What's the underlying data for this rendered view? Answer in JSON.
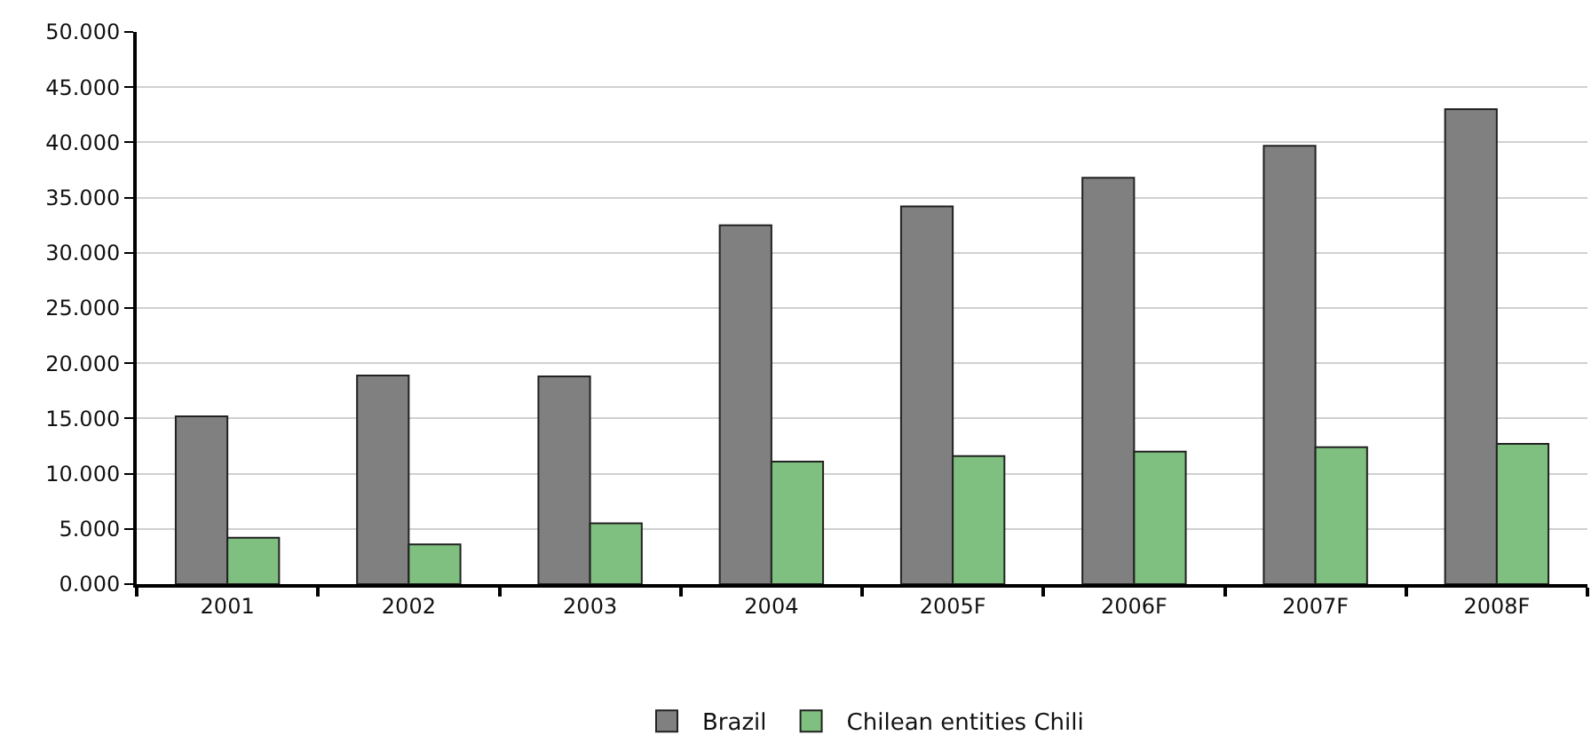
{
  "chart_data": {
    "type": "bar",
    "categories": [
      "2001",
      "2002",
      "2003",
      "2004",
      "2005F",
      "2006F",
      "2007F",
      "2008F"
    ],
    "series": [
      {
        "name": "Brazil",
        "color": "#808080",
        "values": [
          15.2,
          18.9,
          18.8,
          32.5,
          34.2,
          36.8,
          39.7,
          43.0
        ]
      },
      {
        "name": "Chilean entities Chili",
        "color": "#7fbf7f",
        "values": [
          4.2,
          3.6,
          5.5,
          11.1,
          11.6,
          12.0,
          12.4,
          12.7
        ]
      }
    ],
    "ylim": [
      0,
      50
    ],
    "yticks": [
      {
        "value": 0,
        "label": "0.000"
      },
      {
        "value": 5,
        "label": "5.000"
      },
      {
        "value": 10,
        "label": "10.000"
      },
      {
        "value": 15,
        "label": "15.000"
      },
      {
        "value": 20,
        "label": "20.000"
      },
      {
        "value": 25,
        "label": "25.000"
      },
      {
        "value": 30,
        "label": "30.000"
      },
      {
        "value": 35,
        "label": "35.000"
      },
      {
        "value": 40,
        "label": "40.000"
      },
      {
        "value": 45,
        "label": "45.000"
      },
      {
        "value": 50,
        "label": "50.000"
      }
    ],
    "grid": "y",
    "legend": "bottom"
  }
}
